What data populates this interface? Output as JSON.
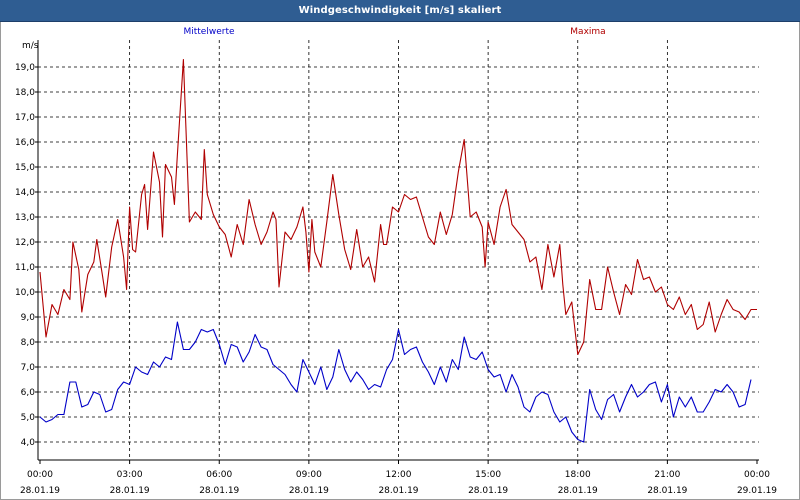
{
  "window": {
    "title": "Windgeschwindigkeit [m/s] skaliert"
  },
  "chart_data": {
    "type": "line",
    "title": "Windgeschwindigkeit [m/s] skaliert",
    "ylabel": "m/s",
    "ylim": [
      3.5,
      20.0
    ],
    "xlim_hours": [
      0,
      24
    ],
    "grid": true,
    "legend": [
      "Mittelwerte",
      "Maxima"
    ],
    "y_ticks": [
      "4,0",
      "5,0",
      "6,0",
      "7,0",
      "8,0",
      "9,0",
      "10,0",
      "11,0",
      "12,0",
      "13,0",
      "14,0",
      "15,0",
      "16,0",
      "17,0",
      "18,0",
      "19,0"
    ],
    "x_ticks": [
      {
        "time": "00:00",
        "date": "28.01.19"
      },
      {
        "time": "03:00",
        "date": "28.01.19"
      },
      {
        "time": "06:00",
        "date": "28.01.19"
      },
      {
        "time": "09:00",
        "date": "28.01.19"
      },
      {
        "time": "12:00",
        "date": "28.01.19"
      },
      {
        "time": "15:00",
        "date": "28.01.19"
      },
      {
        "time": "18:00",
        "date": "28.01.19"
      },
      {
        "time": "21:00",
        "date": "28.01.19"
      },
      {
        "time": "00:00",
        "date": "29.01.19"
      }
    ],
    "series": [
      {
        "name": "Mittelwerte",
        "color": "#0000c8",
        "points": [
          [
            0.0,
            5.0
          ],
          [
            0.2,
            4.8
          ],
          [
            0.4,
            4.9
          ],
          [
            0.6,
            5.1
          ],
          [
            0.8,
            5.1
          ],
          [
            1.0,
            6.4
          ],
          [
            1.2,
            6.4
          ],
          [
            1.4,
            5.4
          ],
          [
            1.6,
            5.5
          ],
          [
            1.8,
            6.0
          ],
          [
            2.0,
            5.9
          ],
          [
            2.2,
            5.2
          ],
          [
            2.4,
            5.3
          ],
          [
            2.6,
            6.1
          ],
          [
            2.8,
            6.4
          ],
          [
            3.0,
            6.3
          ],
          [
            3.2,
            7.0
          ],
          [
            3.4,
            6.8
          ],
          [
            3.6,
            6.7
          ],
          [
            3.8,
            7.2
          ],
          [
            4.0,
            7.0
          ],
          [
            4.2,
            7.4
          ],
          [
            4.4,
            7.3
          ],
          [
            4.6,
            8.8
          ],
          [
            4.8,
            7.7
          ],
          [
            5.0,
            7.7
          ],
          [
            5.2,
            8.0
          ],
          [
            5.4,
            8.5
          ],
          [
            5.6,
            8.4
          ],
          [
            5.8,
            8.5
          ],
          [
            6.0,
            7.9
          ],
          [
            6.2,
            7.1
          ],
          [
            6.4,
            7.9
          ],
          [
            6.6,
            7.8
          ],
          [
            6.8,
            7.2
          ],
          [
            7.0,
            7.6
          ],
          [
            7.2,
            8.3
          ],
          [
            7.4,
            7.8
          ],
          [
            7.6,
            7.7
          ],
          [
            7.8,
            7.1
          ],
          [
            8.0,
            6.9
          ],
          [
            8.2,
            6.7
          ],
          [
            8.4,
            6.3
          ],
          [
            8.6,
            6.0
          ],
          [
            8.8,
            7.3
          ],
          [
            9.0,
            6.8
          ],
          [
            9.2,
            6.3
          ],
          [
            9.4,
            7.0
          ],
          [
            9.6,
            6.1
          ],
          [
            9.8,
            6.6
          ],
          [
            10.0,
            7.7
          ],
          [
            10.2,
            6.9
          ],
          [
            10.4,
            6.4
          ],
          [
            10.6,
            6.8
          ],
          [
            10.8,
            6.5
          ],
          [
            11.0,
            6.1
          ],
          [
            11.2,
            6.3
          ],
          [
            11.4,
            6.2
          ],
          [
            11.6,
            6.9
          ],
          [
            11.8,
            7.3
          ],
          [
            12.0,
            8.5
          ],
          [
            12.2,
            7.5
          ],
          [
            12.4,
            7.7
          ],
          [
            12.6,
            7.8
          ],
          [
            12.8,
            7.2
          ],
          [
            13.0,
            6.8
          ],
          [
            13.2,
            6.3
          ],
          [
            13.4,
            7.0
          ],
          [
            13.6,
            6.4
          ],
          [
            13.8,
            7.3
          ],
          [
            14.0,
            6.9
          ],
          [
            14.2,
            8.2
          ],
          [
            14.4,
            7.4
          ],
          [
            14.6,
            7.3
          ],
          [
            14.8,
            7.6
          ],
          [
            15.0,
            6.9
          ],
          [
            15.2,
            6.6
          ],
          [
            15.4,
            6.7
          ],
          [
            15.6,
            6.0
          ],
          [
            15.8,
            6.7
          ],
          [
            16.0,
            6.2
          ],
          [
            16.2,
            5.4
          ],
          [
            16.4,
            5.2
          ],
          [
            16.6,
            5.8
          ],
          [
            16.8,
            6.0
          ],
          [
            17.0,
            5.9
          ],
          [
            17.2,
            5.2
          ],
          [
            17.4,
            4.8
          ],
          [
            17.6,
            5.0
          ],
          [
            17.8,
            4.4
          ],
          [
            18.0,
            4.1
          ],
          [
            18.2,
            4.0
          ],
          [
            18.4,
            6.1
          ],
          [
            18.6,
            5.3
          ],
          [
            18.8,
            4.9
          ],
          [
            19.0,
            5.7
          ],
          [
            19.2,
            5.9
          ],
          [
            19.4,
            5.2
          ],
          [
            19.6,
            5.8
          ],
          [
            19.8,
            6.3
          ],
          [
            20.0,
            5.8
          ],
          [
            20.2,
            6.0
          ],
          [
            20.4,
            6.3
          ],
          [
            20.6,
            6.4
          ],
          [
            20.8,
            5.6
          ],
          [
            21.0,
            6.3
          ],
          [
            21.2,
            5.0
          ],
          [
            21.4,
            5.8
          ],
          [
            21.6,
            5.4
          ],
          [
            21.8,
            5.8
          ],
          [
            22.0,
            5.2
          ],
          [
            22.2,
            5.2
          ],
          [
            22.4,
            5.6
          ],
          [
            22.6,
            6.1
          ],
          [
            22.8,
            6.0
          ],
          [
            23.0,
            6.3
          ],
          [
            23.2,
            6.0
          ],
          [
            23.4,
            5.4
          ],
          [
            23.6,
            5.5
          ],
          [
            23.8,
            6.5
          ]
        ]
      },
      {
        "name": "Maxima",
        "color": "#b00000",
        "points": [
          [
            0.0,
            10.8
          ],
          [
            0.2,
            8.2
          ],
          [
            0.4,
            9.5
          ],
          [
            0.6,
            9.1
          ],
          [
            0.8,
            10.1
          ],
          [
            1.0,
            9.7
          ],
          [
            1.1,
            12.0
          ],
          [
            1.3,
            10.9
          ],
          [
            1.4,
            9.2
          ],
          [
            1.6,
            10.7
          ],
          [
            1.8,
            11.2
          ],
          [
            1.9,
            12.1
          ],
          [
            2.1,
            10.6
          ],
          [
            2.2,
            9.8
          ],
          [
            2.4,
            11.8
          ],
          [
            2.6,
            12.9
          ],
          [
            2.8,
            11.4
          ],
          [
            2.9,
            10.1
          ],
          [
            3.0,
            13.4
          ],
          [
            3.1,
            11.7
          ],
          [
            3.2,
            11.6
          ],
          [
            3.4,
            13.9
          ],
          [
            3.5,
            14.3
          ],
          [
            3.6,
            12.5
          ],
          [
            3.8,
            15.6
          ],
          [
            4.0,
            14.4
          ],
          [
            4.1,
            12.2
          ],
          [
            4.2,
            15.1
          ],
          [
            4.4,
            14.6
          ],
          [
            4.5,
            13.5
          ],
          [
            4.6,
            15.5
          ],
          [
            4.8,
            19.3
          ],
          [
            5.0,
            12.8
          ],
          [
            5.2,
            13.2
          ],
          [
            5.4,
            12.9
          ],
          [
            5.5,
            15.7
          ],
          [
            5.6,
            13.9
          ],
          [
            5.8,
            13.1
          ],
          [
            6.0,
            12.6
          ],
          [
            6.2,
            12.3
          ],
          [
            6.4,
            11.4
          ],
          [
            6.6,
            12.7
          ],
          [
            6.8,
            11.9
          ],
          [
            7.0,
            13.7
          ],
          [
            7.2,
            12.7
          ],
          [
            7.4,
            11.9
          ],
          [
            7.6,
            12.4
          ],
          [
            7.8,
            13.2
          ],
          [
            7.9,
            12.9
          ],
          [
            8.0,
            10.2
          ],
          [
            8.2,
            12.4
          ],
          [
            8.4,
            12.1
          ],
          [
            8.6,
            12.6
          ],
          [
            8.8,
            13.4
          ],
          [
            8.9,
            12.4
          ],
          [
            9.0,
            10.8
          ],
          [
            9.1,
            12.9
          ],
          [
            9.2,
            11.6
          ],
          [
            9.4,
            11.0
          ],
          [
            9.6,
            12.8
          ],
          [
            9.8,
            14.7
          ],
          [
            10.0,
            13.1
          ],
          [
            10.2,
            11.7
          ],
          [
            10.4,
            10.9
          ],
          [
            10.6,
            12.5
          ],
          [
            10.8,
            11.0
          ],
          [
            11.0,
            11.4
          ],
          [
            11.2,
            10.4
          ],
          [
            11.4,
            12.7
          ],
          [
            11.5,
            11.9
          ],
          [
            11.6,
            11.9
          ],
          [
            11.8,
            13.4
          ],
          [
            12.0,
            13.2
          ],
          [
            12.2,
            13.9
          ],
          [
            12.4,
            13.7
          ],
          [
            12.6,
            13.8
          ],
          [
            12.8,
            13.0
          ],
          [
            13.0,
            12.2
          ],
          [
            13.2,
            11.9
          ],
          [
            13.4,
            13.2
          ],
          [
            13.6,
            12.3
          ],
          [
            13.8,
            13.1
          ],
          [
            14.0,
            14.8
          ],
          [
            14.2,
            16.1
          ],
          [
            14.4,
            13.0
          ],
          [
            14.6,
            13.2
          ],
          [
            14.8,
            12.6
          ],
          [
            14.9,
            11.0
          ],
          [
            15.0,
            12.8
          ],
          [
            15.2,
            11.9
          ],
          [
            15.4,
            13.4
          ],
          [
            15.6,
            14.1
          ],
          [
            15.8,
            12.7
          ],
          [
            16.0,
            12.4
          ],
          [
            16.2,
            12.1
          ],
          [
            16.4,
            11.2
          ],
          [
            16.6,
            11.4
          ],
          [
            16.8,
            10.1
          ],
          [
            17.0,
            11.9
          ],
          [
            17.2,
            10.6
          ],
          [
            17.4,
            11.9
          ],
          [
            17.5,
            10.3
          ],
          [
            17.6,
            9.1
          ],
          [
            17.8,
            9.6
          ],
          [
            18.0,
            7.5
          ],
          [
            18.2,
            8.0
          ],
          [
            18.4,
            10.5
          ],
          [
            18.6,
            9.3
          ],
          [
            18.8,
            9.3
          ],
          [
            19.0,
            11.0
          ],
          [
            19.2,
            10.0
          ],
          [
            19.4,
            9.1
          ],
          [
            19.6,
            10.3
          ],
          [
            19.8,
            9.9
          ],
          [
            20.0,
            11.3
          ],
          [
            20.2,
            10.5
          ],
          [
            20.4,
            10.6
          ],
          [
            20.6,
            10.0
          ],
          [
            20.8,
            10.2
          ],
          [
            21.0,
            9.5
          ],
          [
            21.2,
            9.3
          ],
          [
            21.4,
            9.8
          ],
          [
            21.6,
            9.1
          ],
          [
            21.8,
            9.5
          ],
          [
            22.0,
            8.5
          ],
          [
            22.2,
            8.7
          ],
          [
            22.4,
            9.6
          ],
          [
            22.6,
            8.4
          ],
          [
            22.8,
            9.1
          ],
          [
            23.0,
            9.7
          ],
          [
            23.2,
            9.3
          ],
          [
            23.4,
            9.2
          ],
          [
            23.6,
            8.9
          ],
          [
            23.8,
            9.3
          ],
          [
            24.0,
            9.3
          ]
        ]
      }
    ]
  }
}
